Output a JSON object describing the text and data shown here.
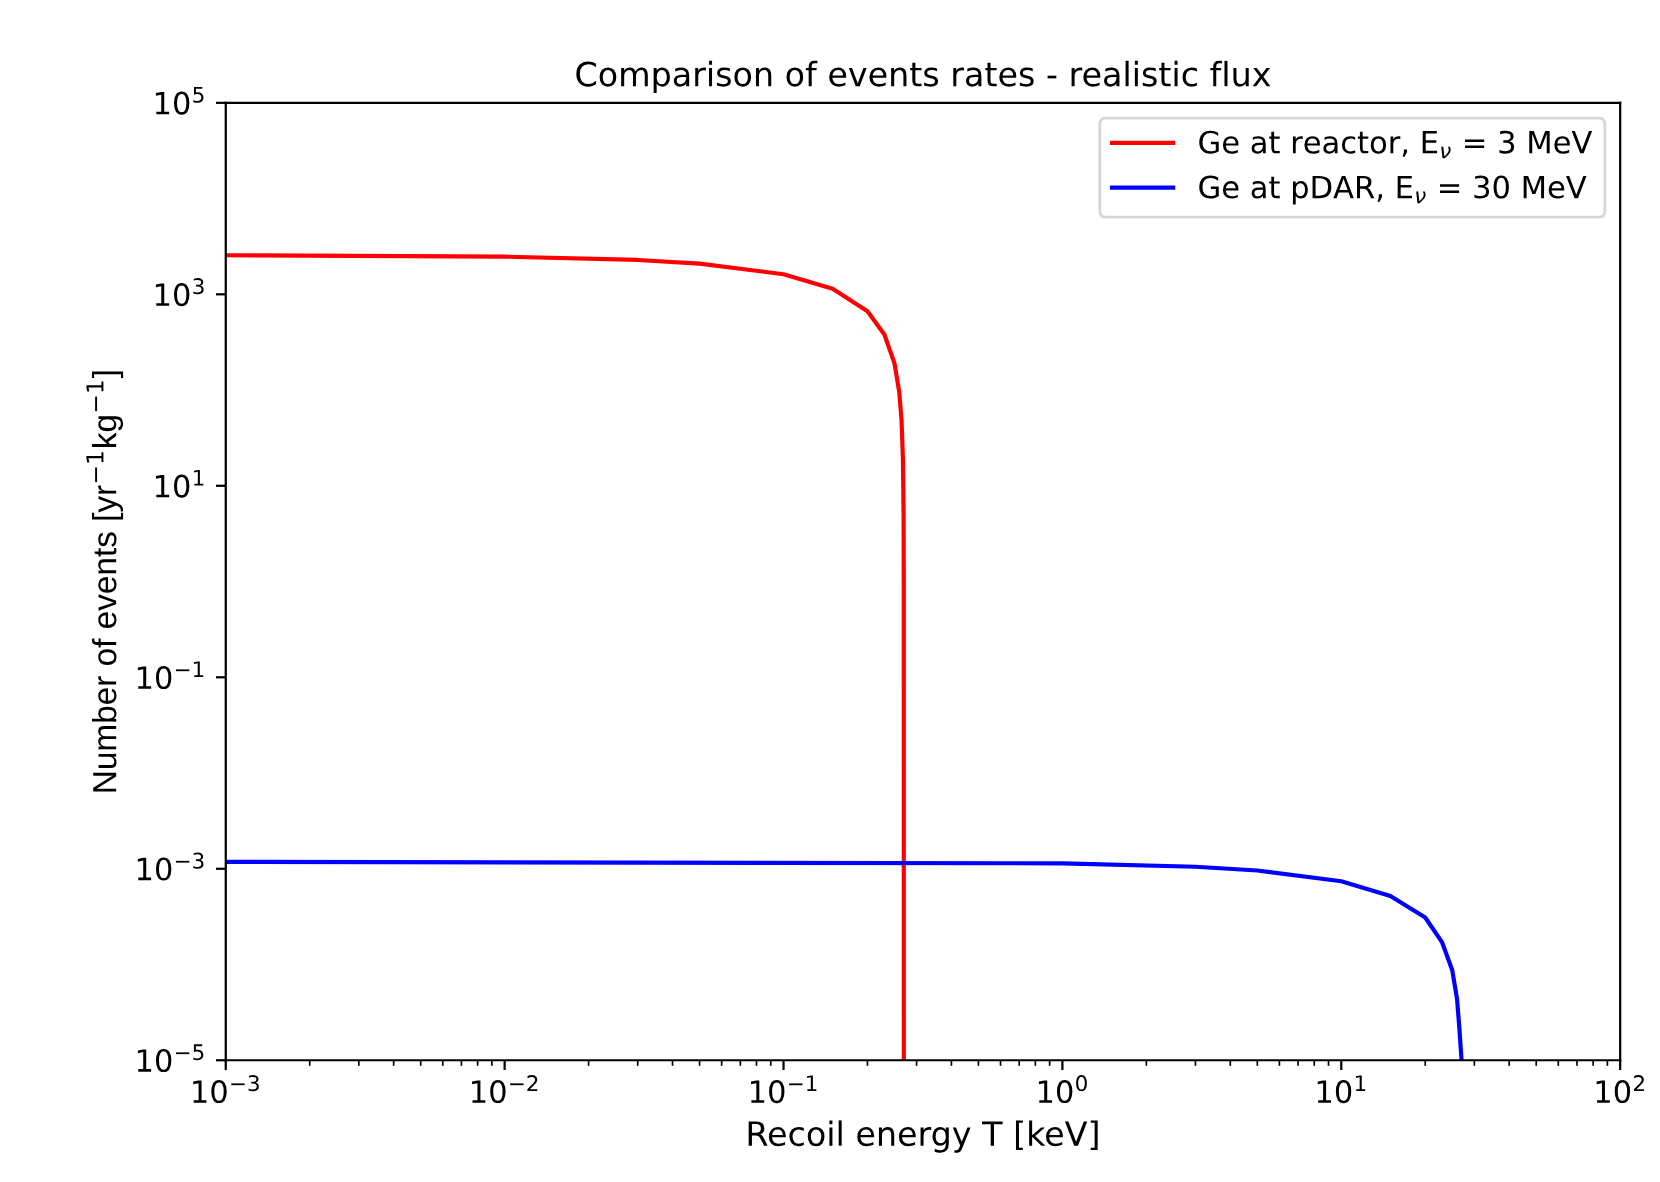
{
  "chart_data": {
    "type": "line",
    "title": "Comparison of events rates - realistic flux",
    "xlabel": "Recoil energy T [keV]",
    "ylabel": "Number of events [yr$^{−1}$kg$^{−1}$]",
    "log": "xy",
    "grid": false,
    "legend": "top right",
    "line_style": "solid",
    "marker": "none",
    "xlim": [
      0.001,
      100
    ],
    "ylim": [
      1e-05,
      100000
    ],
    "xticks": [
      {
        "value": 0.001,
        "label": "10$^{−3}$"
      },
      {
        "value": 0.01,
        "label": "10$^{−2}$"
      },
      {
        "value": 0.1,
        "label": "10$^{−1}$"
      },
      {
        "value": 1,
        "label": "10$^{0}$"
      },
      {
        "value": 10,
        "label": "10$^{1}$"
      },
      {
        "value": 100,
        "label": "10$^{2}$"
      }
    ],
    "yticks": [
      {
        "value": 1e-05,
        "label": "10$^{−5}$"
      },
      {
        "value": 0.001,
        "label": "10$^{−3}$"
      },
      {
        "value": 0.1,
        "label": "10$^{−1}$"
      },
      {
        "value": 10,
        "label": "10$^{1}$"
      },
      {
        "value": 1000,
        "label": "10$^{3}$"
      },
      {
        "value": 100000,
        "label": "10$^{5}$"
      }
    ],
    "series": [
      {
        "name": "Ge at reactor, E$_{ν}$ = 3 MeV",
        "color": "#ff0000",
        "x": [
          0.001,
          0.01,
          0.03,
          0.05,
          0.1,
          0.15,
          0.2,
          0.23,
          0.25,
          0.26,
          0.265,
          0.268,
          0.2695,
          0.2699,
          0.27
        ],
        "values": [
          2560,
          2475,
          2285,
          2095,
          1620,
          1140,
          665,
          380,
          190,
          95,
          48,
          19,
          4.8,
          0.95,
          1e-05
        ]
      },
      {
        "name": "Ge at pDAR, E$_{ν}$ = 30 MeV",
        "color": "#0000ff",
        "x": [
          0.001,
          1,
          3,
          5,
          10,
          15,
          20,
          23,
          25,
          26,
          26.5,
          27
        ],
        "values": [
          0.00118,
          0.00114,
          0.00105,
          0.00096,
          0.00074,
          0.00052,
          0.00031,
          0.00017,
          8.7e-05,
          4.4e-05,
          2.2e-05,
          1e-05
        ]
      }
    ]
  }
}
